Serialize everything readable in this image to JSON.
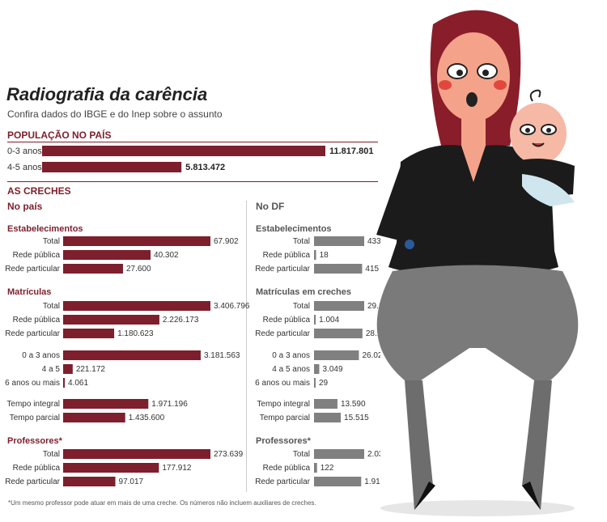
{
  "header": {
    "title": "Radiografia da carência",
    "subtitle": "Confira dados do IBGE e do Inep sobre o assunto"
  },
  "colors": {
    "brazil": "#7d1f2c",
    "df": "#808080",
    "figure_dress": "#1b1b1b",
    "figure_pants": "#7a7a7a",
    "figure_hair": "#8a1d2a"
  },
  "sections": {
    "population": "POPULAÇÃO NO PAÍS",
    "creches": "AS CRECHES",
    "brazil": "No país",
    "df": "No DF"
  },
  "groups": {
    "brazil": [
      "Estabelecimentos",
      "Matrículas",
      "Professores*"
    ],
    "df": [
      "Estabelecimentos",
      "Matrículas em creches",
      "Professores*"
    ]
  },
  "footnote": "*Um mesmo professor pode atuar em mais de uma creche. Os números não incluem auxiliares de creches.",
  "chart_data": [
    {
      "type": "bar",
      "title": "POPULAÇÃO NO PAÍS",
      "categories": [
        "0-3 anos",
        "4-5 anos"
      ],
      "values": [
        11817801,
        5813472
      ],
      "labels": [
        "11.817.801",
        "5.813.472"
      ]
    },
    {
      "type": "bar",
      "title": "No país",
      "categories": [
        "Total",
        "Rede pública",
        "Rede particular",
        "Total",
        "Rede pública",
        "Rede particular",
        "0 a 3 anos",
        "4 a 5",
        "6 anos ou mais",
        "Tempo integral",
        "Tempo parcial",
        "Total",
        "Rede pública",
        "Rede particular"
      ],
      "values": [
        67902,
        40302,
        27600,
        3406796,
        2226173,
        1180623,
        3181563,
        221172,
        4061,
        1971196,
        1435600,
        273639,
        177912,
        97017
      ],
      "labels": [
        "67.902",
        "40.302",
        "27.600",
        "3.406.796",
        "2.226.173",
        "1.180.623",
        "3.181.563",
        "221.172",
        "4.061",
        "1.971.196",
        "1.435.600",
        "273.639",
        "177.912",
        "97.017"
      ]
    },
    {
      "type": "bar",
      "title": "No DF",
      "categories": [
        "Total",
        "Rede pública",
        "Rede particular",
        "Total",
        "Rede pública",
        "Rede particular",
        "0 a 3 anos",
        "4 a 5 anos",
        "6 anos ou mais",
        "Tempo integral",
        "Tempo parcial",
        "Total",
        "Rede pública",
        "Rede particular"
      ],
      "values": [
        433,
        18,
        415,
        29105,
        1004,
        28101,
        26027,
        3049,
        29,
        13590,
        15515,
        2034,
        122,
        1912
      ],
      "labels": [
        "433",
        "18",
        "415",
        "29.105",
        "1.004",
        "28.101",
        "26.027",
        "3.049",
        "29",
        "13.590",
        "15.515",
        "2.034",
        "122",
        "1.912"
      ]
    }
  ]
}
